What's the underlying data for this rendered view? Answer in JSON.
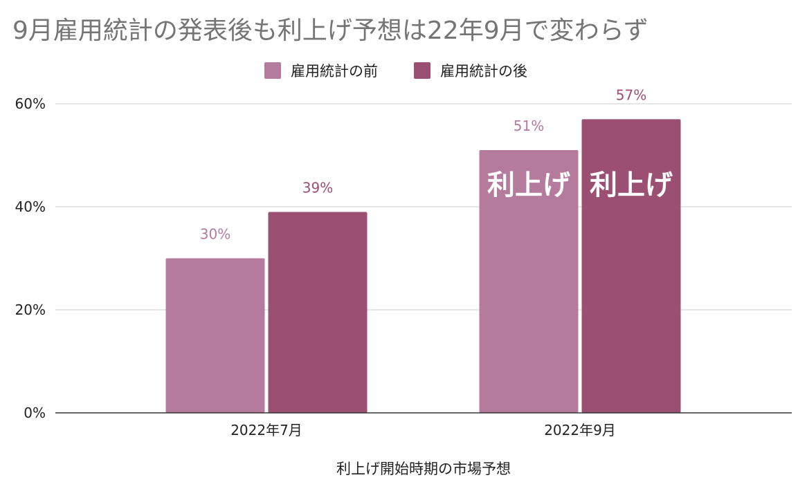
{
  "chart_data": {
    "type": "bar",
    "title": "9月雇用統計の発表後も利上げ予想は22年9月で変わらず",
    "xlabel": "利上げ開始時期の市場予想",
    "ylabel": "",
    "categories": [
      "2022年7月",
      "2022年9月"
    ],
    "series": [
      {
        "name": "雇用統計の前",
        "values": [
          30,
          51
        ],
        "data_labels": [
          "30%",
          "51%"
        ],
        "color": "#b57b9c",
        "label_color": "#b57b9c"
      },
      {
        "name": "雇用統計の後",
        "values": [
          39,
          57
        ],
        "data_labels": [
          "39%",
          "57%"
        ],
        "color": "#9b5073",
        "label_color": "#9b5073"
      }
    ],
    "ylim": [
      0,
      60
    ],
    "yticks": [
      0,
      20,
      40,
      60
    ],
    "ytick_labels": [
      "0%",
      "20%",
      "40%",
      "60%"
    ],
    "grid": true,
    "legend_position": "top-center",
    "annotations": [
      {
        "text": "利上げ",
        "series": 0,
        "category": 1
      },
      {
        "text": "利上げ",
        "series": 1,
        "category": 1
      }
    ]
  },
  "colors": {
    "title": "#757575",
    "grid": "#cccccc",
    "axis": "#333333",
    "text": "#222222",
    "annotation": "#ffffff"
  }
}
